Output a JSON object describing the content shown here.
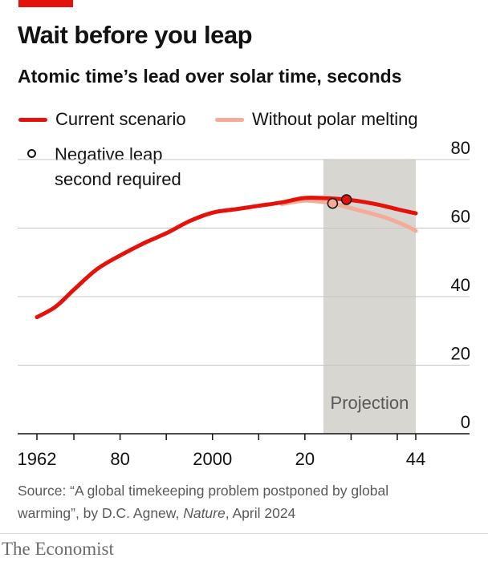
{
  "header": {
    "title": "Wait before you leap",
    "subtitle": "Atomic time’s lead over solar time, seconds"
  },
  "legend": {
    "current": "Current scenario",
    "without": "Without polar melting",
    "negative_line1": "Negative leap",
    "negative_line2": "second required"
  },
  "colors": {
    "current": "#e3120b",
    "without": "#f6ab98",
    "projection_band": "#d7d6d1",
    "grid": "#c4c4c4",
    "brand_tag": "#e3120b"
  },
  "chart_data": {
    "type": "line",
    "title": "Wait before you leap",
    "subtitle": "Atomic time’s lead over solar time, seconds",
    "xlabel": "",
    "ylabel": "",
    "xlim": [
      1962,
      2044
    ],
    "ylim": [
      0,
      80
    ],
    "grid": "horizontal",
    "y_axis_side": "right",
    "y_ticks": [
      0,
      20,
      40,
      60,
      80
    ],
    "y_tick_labels": [
      "0",
      "20",
      "40",
      "60",
      "80"
    ],
    "x_ticks": [
      1962,
      1970,
      1980,
      1990,
      2000,
      2010,
      2020,
      2030,
      2040,
      2044
    ],
    "x_tick_labels": [
      {
        "x": 1962,
        "label": "1962"
      },
      {
        "x": 1980,
        "label": "80"
      },
      {
        "x": 2000,
        "label": "2000"
      },
      {
        "x": 2020,
        "label": "20"
      },
      {
        "x": 2044,
        "label": "44"
      }
    ],
    "projection": {
      "from": 2024,
      "to": 2044,
      "label": "Projection"
    },
    "series": [
      {
        "name": "Current scenario",
        "color": "#e3120b",
        "points": [
          [
            1962,
            34
          ],
          [
            1966,
            37
          ],
          [
            1970,
            42
          ],
          [
            1975,
            48
          ],
          [
            1980,
            52
          ],
          [
            1985,
            55.5
          ],
          [
            1990,
            58.5
          ],
          [
            1995,
            62
          ],
          [
            2000,
            64.5
          ],
          [
            2005,
            65.5
          ],
          [
            2010,
            66.5
          ],
          [
            2015,
            67.5
          ],
          [
            2020,
            68.8
          ],
          [
            2025,
            68.7
          ],
          [
            2029,
            68.3
          ],
          [
            2032,
            67.8
          ],
          [
            2036,
            66.8
          ],
          [
            2040,
            65.5
          ],
          [
            2044,
            64.3
          ]
        ]
      },
      {
        "name": "Without polar melting",
        "color": "#f6ab98",
        "points": [
          [
            2015,
            67
          ],
          [
            2020,
            68
          ],
          [
            2024,
            67.6
          ],
          [
            2026,
            67.2
          ],
          [
            2030,
            65.8
          ],
          [
            2034,
            64.4
          ],
          [
            2038,
            62.8
          ],
          [
            2042,
            60.6
          ],
          [
            2044,
            59.2
          ]
        ]
      }
    ],
    "markers": [
      {
        "series": "Without polar melting",
        "x": 2026,
        "y": 67.2,
        "label": "Negative leap second required"
      },
      {
        "series": "Current scenario",
        "x": 2029,
        "y": 68.3,
        "label": "Negative leap second required"
      }
    ]
  },
  "source": {
    "prefix": "Source: “A global timekeeping problem postponed by global warming”, by D.C. Agnew, ",
    "journal": "Nature",
    "suffix": ", April 2024"
  },
  "brand": "The Economist"
}
